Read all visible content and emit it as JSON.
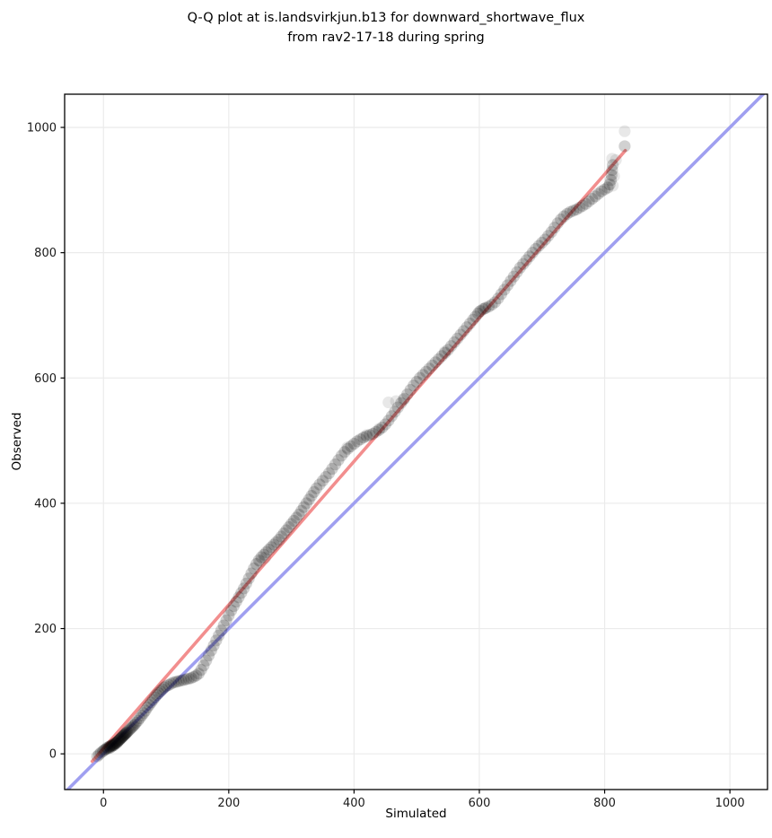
{
  "figure": {
    "title_line1": "Q-Q plot at is.landsvirkjun.b13 for downward_shortwave_flux",
    "title_line2": "from rav2-17-18 during spring"
  },
  "chart_data": {
    "type": "scatter",
    "title": "Q-Q plot at is.landsvirkjun.b13 for downward_shortwave_flux from rav2-17-18 during spring",
    "xlabel": "Simulated",
    "ylabel": "Observed",
    "xlim": [
      -62,
      1060
    ],
    "ylim": [
      -57,
      1053
    ],
    "xticks": [
      0,
      200,
      400,
      600,
      800,
      1000
    ],
    "yticks": [
      0,
      200,
      400,
      600,
      800,
      1000
    ],
    "grid": true,
    "grid_color": "#ebebeb",
    "spine_color": "#000000",
    "tick_label_color": "#1a1a1a",
    "identity_line": {
      "name": "y-equals-x-reference-line",
      "color": "#9f9ff0",
      "width": 3.6,
      "start": [
        -62,
        -62
      ],
      "end": [
        1060,
        1060
      ]
    },
    "fit_line": {
      "name": "quantile-fit-line",
      "color": "#f28e8e",
      "width": 3.6,
      "start": [
        -18,
        -12
      ],
      "end": [
        833,
        963
      ]
    },
    "points_style": {
      "color": "#000000",
      "opacity": 0.18,
      "radius": 6.6
    },
    "light_points_style": {
      "color": "#000000",
      "opacity": 0.09,
      "radius": 6.6
    },
    "points": [
      [
        -10,
        -4
      ],
      [
        -7,
        -1
      ],
      [
        -4,
        2
      ],
      [
        -1,
        4
      ],
      [
        1,
        6
      ],
      [
        3,
        7
      ],
      [
        5,
        8
      ],
      [
        6,
        10
      ],
      [
        8,
        9
      ],
      [
        9,
        11
      ],
      [
        10,
        12
      ],
      [
        11,
        10
      ],
      [
        12,
        13
      ],
      [
        13,
        12
      ],
      [
        14,
        14
      ],
      [
        15,
        13
      ],
      [
        16,
        15
      ],
      [
        17,
        14
      ],
      [
        18,
        16
      ],
      [
        19,
        17
      ],
      [
        20,
        18
      ],
      [
        21,
        17
      ],
      [
        22,
        19
      ],
      [
        23,
        20
      ],
      [
        24,
        21
      ],
      [
        25,
        22
      ],
      [
        26,
        23
      ],
      [
        27,
        24
      ],
      [
        28,
        25
      ],
      [
        29,
        26
      ],
      [
        30,
        27
      ],
      [
        31,
        28
      ],
      [
        32,
        29
      ],
      [
        33,
        30
      ],
      [
        34,
        31
      ],
      [
        35,
        32
      ],
      [
        36,
        33
      ],
      [
        37,
        34
      ],
      [
        38,
        35
      ],
      [
        40,
        37
      ],
      [
        42,
        39
      ],
      [
        44,
        41
      ],
      [
        46,
        43
      ],
      [
        48,
        45
      ],
      [
        50,
        47
      ],
      [
        52,
        50
      ],
      [
        55,
        53
      ],
      [
        58,
        57
      ],
      [
        61,
        61
      ],
      [
        64,
        65
      ],
      [
        67,
        69
      ],
      [
        70,
        74
      ],
      [
        73,
        78
      ],
      [
        76,
        82
      ],
      [
        79,
        86
      ],
      [
        82,
        90
      ],
      [
        85,
        94
      ],
      [
        88,
        97
      ],
      [
        91,
        100
      ],
      [
        94,
        103
      ],
      [
        97,
        106
      ],
      [
        100,
        108
      ],
      [
        104,
        110
      ],
      [
        108,
        112
      ],
      [
        112,
        114
      ],
      [
        116,
        115
      ],
      [
        120,
        116
      ],
      [
        124,
        117
      ],
      [
        128,
        118
      ],
      [
        132,
        119
      ],
      [
        136,
        120
      ],
      [
        140,
        121
      ],
      [
        144,
        123
      ],
      [
        148,
        125
      ],
      [
        152,
        128
      ],
      [
        156,
        134
      ],
      [
        160,
        141
      ],
      [
        164,
        149
      ],
      [
        168,
        157
      ],
      [
        172,
        165
      ],
      [
        176,
        173
      ],
      [
        180,
        181
      ],
      [
        184,
        189
      ],
      [
        188,
        197
      ],
      [
        192,
        205
      ],
      [
        196,
        213
      ],
      [
        200,
        221
      ],
      [
        204,
        229
      ],
      [
        208,
        236
      ],
      [
        212,
        243
      ],
      [
        216,
        250
      ],
      [
        220,
        257
      ],
      [
        224,
        264
      ],
      [
        228,
        272
      ],
      [
        232,
        280
      ],
      [
        236,
        288
      ],
      [
        240,
        296
      ],
      [
        244,
        303
      ],
      [
        248,
        309
      ],
      [
        252,
        314
      ],
      [
        256,
        318
      ],
      [
        260,
        322
      ],
      [
        264,
        326
      ],
      [
        268,
        330
      ],
      [
        272,
        334
      ],
      [
        276,
        338
      ],
      [
        280,
        342
      ],
      [
        284,
        347
      ],
      [
        288,
        352
      ],
      [
        292,
        357
      ],
      [
        296,
        362
      ],
      [
        300,
        367
      ],
      [
        304,
        372
      ],
      [
        308,
        377
      ],
      [
        312,
        382
      ],
      [
        316,
        388
      ],
      [
        320,
        394
      ],
      [
        324,
        400
      ],
      [
        328,
        406
      ],
      [
        332,
        412
      ],
      [
        336,
        418
      ],
      [
        340,
        424
      ],
      [
        345,
        430
      ],
      [
        350,
        436
      ],
      [
        355,
        442
      ],
      [
        360,
        448
      ],
      [
        365,
        455
      ],
      [
        370,
        462
      ],
      [
        375,
        469
      ],
      [
        380,
        476
      ],
      [
        385,
        482
      ],
      [
        390,
        487
      ],
      [
        395,
        491
      ],
      [
        400,
        495
      ],
      [
        405,
        499
      ],
      [
        410,
        502
      ],
      [
        415,
        505
      ],
      [
        420,
        507
      ],
      [
        425,
        509
      ],
      [
        430,
        511
      ],
      [
        435,
        514
      ],
      [
        440,
        517
      ],
      [
        445,
        521
      ],
      [
        450,
        526
      ],
      [
        455,
        532
      ],
      [
        460,
        539
      ],
      [
        465,
        546
      ],
      [
        470,
        553
      ],
      [
        475,
        560
      ],
      [
        480,
        567
      ],
      [
        485,
        574
      ],
      [
        490,
        581
      ],
      [
        495,
        588
      ],
      [
        500,
        594
      ],
      [
        505,
        600
      ],
      [
        510,
        605
      ],
      [
        515,
        610
      ],
      [
        520,
        615
      ],
      [
        525,
        620
      ],
      [
        530,
        625
      ],
      [
        535,
        630
      ],
      [
        540,
        635
      ],
      [
        545,
        640
      ],
      [
        550,
        645
      ],
      [
        555,
        651
      ],
      [
        560,
        657
      ],
      [
        565,
        663
      ],
      [
        570,
        669
      ],
      [
        575,
        675
      ],
      [
        580,
        681
      ],
      [
        585,
        687
      ],
      [
        590,
        693
      ],
      [
        594,
        698
      ],
      [
        598,
        703
      ],
      [
        602,
        707
      ],
      [
        606,
        710
      ],
      [
        610,
        712
      ],
      [
        615,
        714
      ],
      [
        620,
        717
      ],
      [
        625,
        721
      ],
      [
        630,
        727
      ],
      [
        635,
        734
      ],
      [
        640,
        741
      ],
      [
        645,
        748
      ],
      [
        650,
        755
      ],
      [
        655,
        762
      ],
      [
        660,
        769
      ],
      [
        665,
        776
      ],
      [
        670,
        782
      ],
      [
        675,
        788
      ],
      [
        680,
        794
      ],
      [
        685,
        800
      ],
      [
        690,
        806
      ],
      [
        695,
        811
      ],
      [
        700,
        816
      ],
      [
        705,
        821
      ],
      [
        710,
        827
      ],
      [
        715,
        833
      ],
      [
        720,
        840
      ],
      [
        725,
        847
      ],
      [
        730,
        853
      ],
      [
        735,
        858
      ],
      [
        740,
        862
      ],
      [
        745,
        865
      ],
      [
        750,
        867
      ],
      [
        755,
        869
      ],
      [
        760,
        872
      ],
      [
        765,
        875
      ],
      [
        770,
        878
      ],
      [
        775,
        882
      ],
      [
        780,
        886
      ],
      [
        785,
        890
      ],
      [
        790,
        894
      ],
      [
        795,
        898
      ],
      [
        800,
        901
      ],
      [
        805,
        904
      ],
      [
        808,
        909
      ],
      [
        810,
        916
      ],
      [
        811,
        924
      ],
      [
        812,
        932
      ],
      [
        813,
        940
      ],
      [
        832,
        970
      ]
    ],
    "light_points": [
      [
        250,
        307
      ],
      [
        258,
        313
      ],
      [
        389,
        489
      ],
      [
        420,
        509
      ],
      [
        440,
        519
      ],
      [
        455,
        561
      ],
      [
        467,
        563
      ],
      [
        479,
        565
      ],
      [
        545,
        642
      ],
      [
        600,
        706
      ],
      [
        609,
        711
      ],
      [
        813,
        907
      ],
      [
        815,
        922
      ],
      [
        812,
        950
      ],
      [
        818,
        948
      ],
      [
        832,
        994
      ]
    ]
  }
}
